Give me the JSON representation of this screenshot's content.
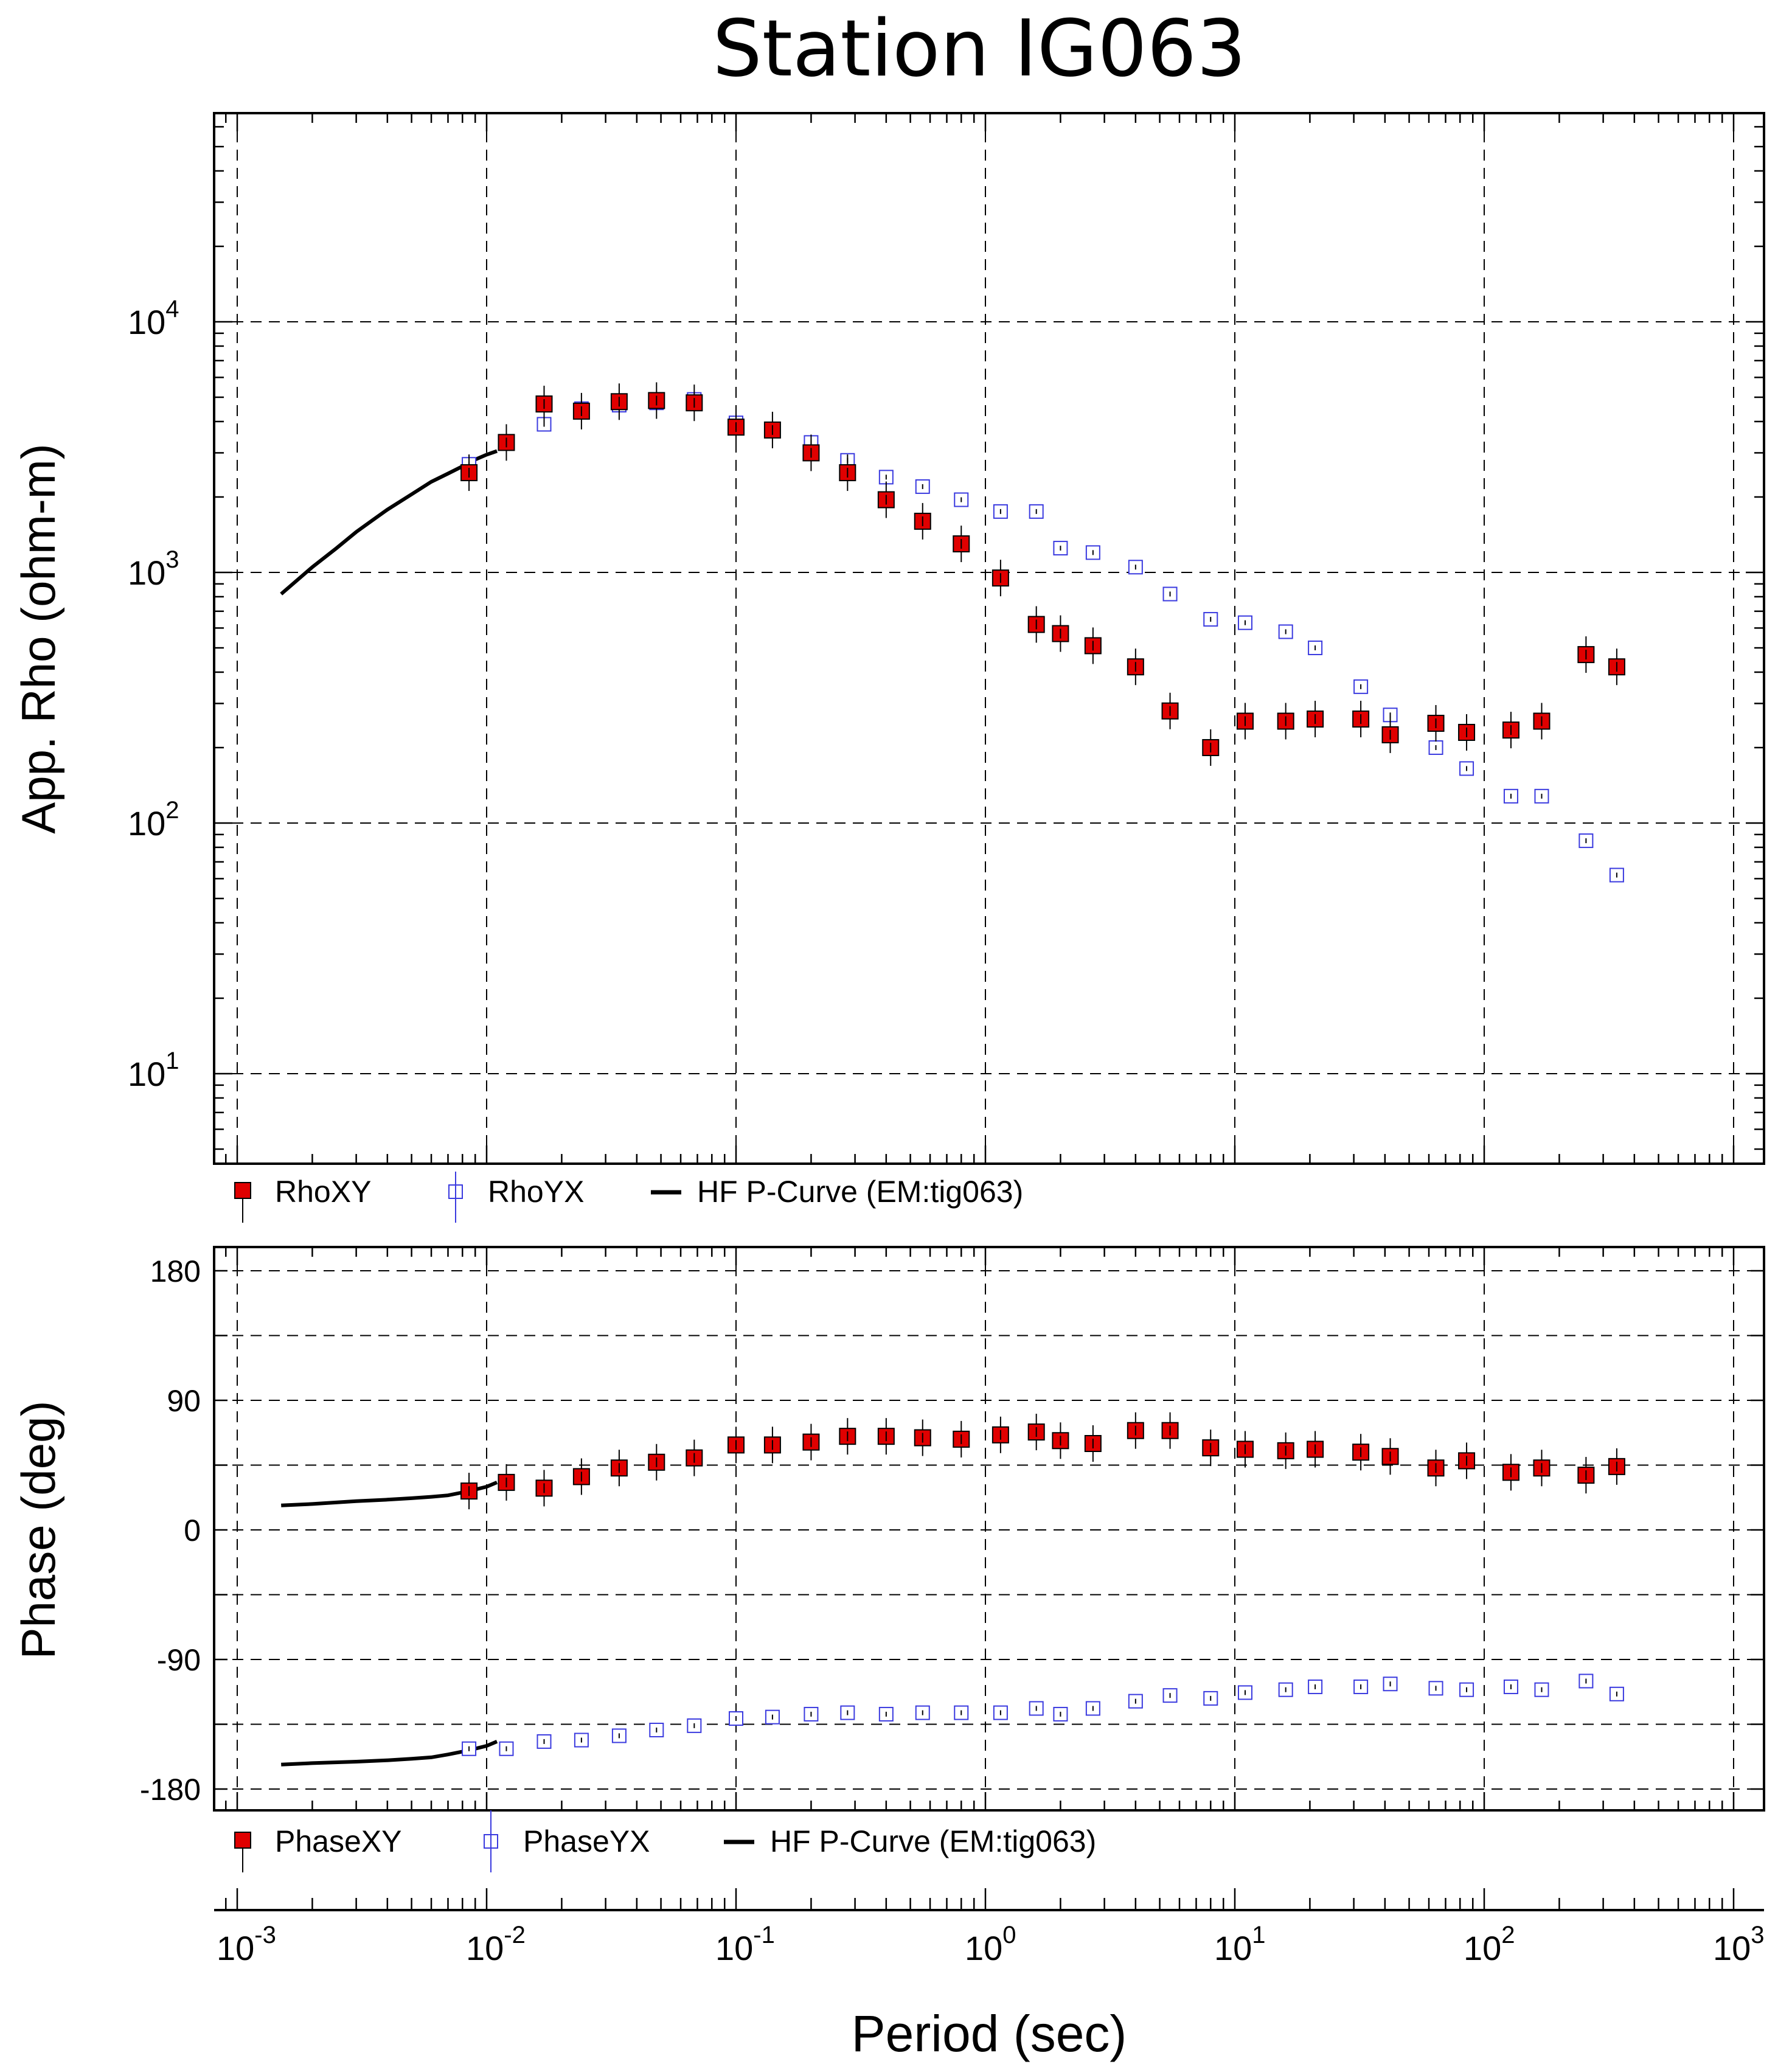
{
  "title": "Station IG063",
  "chart_data": [
    {
      "type": "scatter",
      "panel": "apparent-resistivity",
      "ylabel": "App. Rho (ohm-m)",
      "yscale": "log",
      "xscale": "log",
      "ylim": [
        5,
        80000
      ],
      "xlim": [
        0.0007,
        1100
      ],
      "yticks": [
        {
          "base": "10",
          "exp": "1",
          "value": 10
        },
        {
          "base": "10",
          "exp": "2",
          "value": 100
        },
        {
          "base": "10",
          "exp": "3",
          "value": 1000
        },
        {
          "base": "10",
          "exp": "4",
          "value": 10000
        }
      ],
      "grid": true,
      "legend": [
        {
          "label": "RhoXY",
          "marker": "filled-square",
          "color": "#e00000"
        },
        {
          "label": "RhoYX",
          "marker": "open-square",
          "color": "#3a3adf"
        },
        {
          "label": "HF P-Curve (EM:tig063)",
          "marker": "line",
          "color": "#000000"
        }
      ],
      "series": [
        {
          "name": "RhoXY",
          "x": [
            0.0085,
            0.012,
            0.017,
            0.024,
            0.034,
            0.048,
            0.068,
            0.1,
            0.14,
            0.2,
            0.28,
            0.4,
            0.56,
            0.8,
            1.15,
            1.6,
            2.0,
            2.7,
            4.0,
            5.5,
            8.0,
            11.0,
            16.0,
            21.0,
            32.0,
            42.0,
            64.0,
            85.0,
            128.0,
            170.0,
            256.0,
            340.0
          ],
          "y": [
            2500,
            3300,
            4700,
            4400,
            4800,
            4850,
            4750,
            3800,
            3700,
            3000,
            2500,
            1950,
            1600,
            1300,
            950,
            620,
            570,
            510,
            420,
            280,
            200,
            255,
            255,
            260,
            260,
            225,
            250,
            230,
            235,
            255,
            470,
            420
          ]
        },
        {
          "name": "RhoYX",
          "x": [
            0.0085,
            0.012,
            0.017,
            0.024,
            0.034,
            0.048,
            0.068,
            0.1,
            0.14,
            0.2,
            0.28,
            0.4,
            0.56,
            0.8,
            1.15,
            1.6,
            2.0,
            2.7,
            4.0,
            5.5,
            8.0,
            11.0,
            16.0,
            21.0,
            32.0,
            42.0,
            64.0,
            85.0,
            128.0,
            170.0,
            256.0,
            340.0
          ],
          "y": [
            2700,
            3300,
            3900,
            4500,
            4650,
            4750,
            4900,
            3950,
            3700,
            3300,
            2800,
            2400,
            2200,
            1950,
            1750,
            1750,
            1250,
            1200,
            1050,
            820,
            650,
            630,
            580,
            500,
            350,
            270,
            200,
            165,
            128,
            128,
            85,
            62
          ]
        },
        {
          "name": "HF P-Curve (EM:tig063)",
          "x": [
            0.0015,
            0.002,
            0.0025,
            0.003,
            0.0035,
            0.004,
            0.005,
            0.006,
            0.007,
            0.008,
            0.009,
            0.01,
            0.011
          ],
          "y": [
            820,
            1050,
            1250,
            1450,
            1620,
            1780,
            2050,
            2300,
            2480,
            2650,
            2820,
            2950,
            3050
          ]
        }
      ]
    },
    {
      "type": "scatter",
      "panel": "phase",
      "ylabel": "Phase (deg)",
      "xlabel": "Period (sec)",
      "xscale": "log",
      "ylim": [
        -200,
        200
      ],
      "yticks": [
        "180",
        "90",
        "0",
        "-90",
        "-180"
      ],
      "xticks": [
        {
          "base": "10",
          "exp": "-3",
          "value": 0.001
        },
        {
          "base": "10",
          "exp": "-2",
          "value": 0.01
        },
        {
          "base": "10",
          "exp": "-1",
          "value": 0.1
        },
        {
          "base": "10",
          "exp": "0",
          "value": 1
        },
        {
          "base": "10",
          "exp": "1",
          "value": 10
        },
        {
          "base": "10",
          "exp": "2",
          "value": 100
        },
        {
          "base": "10",
          "exp": "3",
          "value": 1000
        }
      ],
      "grid": true,
      "legend": [
        {
          "label": "PhaseXY",
          "marker": "filled-square",
          "color": "#e00000"
        },
        {
          "label": "PhaseYX",
          "marker": "open-square",
          "color": "#3a3adf"
        },
        {
          "label": "HF P-Curve (EM:tig063)",
          "marker": "line",
          "color": "#000000"
        }
      ],
      "series": [
        {
          "name": "PhaseXY",
          "x": [
            0.0085,
            0.012,
            0.017,
            0.024,
            0.034,
            0.048,
            0.068,
            0.1,
            0.14,
            0.2,
            0.28,
            0.4,
            0.56,
            0.8,
            1.15,
            1.6,
            2.0,
            2.7,
            4.0,
            5.5,
            8.0,
            11.0,
            16.0,
            21.0,
            32.0,
            42.0,
            64.0,
            85.0,
            128.0,
            170.0,
            256.0,
            340.0
          ],
          "y": [
            27,
            33,
            29,
            37,
            43,
            47,
            50,
            59,
            59,
            61,
            65,
            65,
            64,
            63,
            66,
            68,
            62,
            60,
            69,
            69,
            57,
            56,
            55,
            56,
            54,
            51,
            43,
            48,
            40,
            43,
            38,
            44
          ]
        },
        {
          "name": "PhaseYX",
          "x": [
            0.0085,
            0.012,
            0.017,
            0.024,
            0.034,
            0.048,
            0.068,
            0.1,
            0.14,
            0.2,
            0.28,
            0.4,
            0.56,
            0.8,
            1.15,
            1.6,
            2.0,
            2.7,
            4.0,
            5.5,
            8.0,
            11.0,
            16.0,
            21.0,
            32.0,
            42.0,
            64.0,
            85.0,
            128.0,
            170.0,
            256.0,
            340.0
          ],
          "y": [
            -152,
            -152,
            -147,
            -146,
            -143,
            -139,
            -136,
            -131,
            -130,
            -128,
            -127,
            -128,
            -127,
            -127,
            -127,
            -124,
            -128,
            -124,
            -119,
            -115,
            -117,
            -113,
            -111,
            -109,
            -109,
            -107,
            -110,
            -111,
            -109,
            -111,
            -105,
            -114
          ]
        },
        {
          "name": "HF P-Curve (EM:tig063)",
          "segments": [
            {
              "x": [
                0.0015,
                0.002,
                0.003,
                0.004,
                0.005,
                0.006,
                0.007,
                0.008,
                0.009,
                0.01,
                0.011
              ],
              "y": [
                17,
                18,
                20,
                21,
                22,
                23,
                24,
                26,
                28,
                30,
                33
              ]
            },
            {
              "x": [
                0.0015,
                0.002,
                0.003,
                0.004,
                0.005,
                0.006,
                0.007,
                0.008,
                0.009,
                0.01,
                0.011
              ],
              "y": [
                -163,
                -162,
                -161,
                -160,
                -159,
                -158,
                -156,
                -154,
                -152,
                -150,
                -147
              ]
            }
          ]
        }
      ]
    }
  ]
}
